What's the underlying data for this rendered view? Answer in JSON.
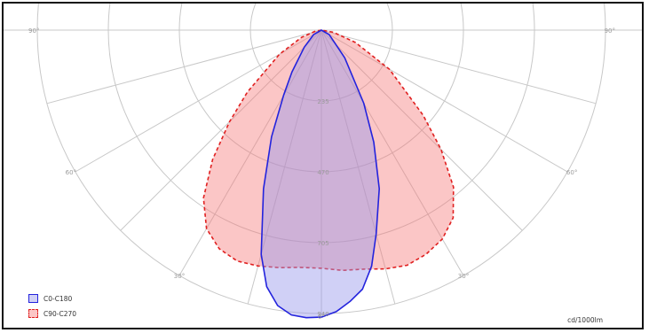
{
  "chart_data": {
    "type": "polar",
    "angle_labels": [
      {
        "label": "90°",
        "angle": -90
      },
      {
        "label": "60°",
        "angle": -60
      },
      {
        "label": "30°",
        "angle": -30
      },
      {
        "label": "0°",
        "angle": 0
      },
      {
        "label": "30°",
        "angle": 30
      },
      {
        "label": "60°",
        "angle": 60
      },
      {
        "label": "90°",
        "angle": 90
      }
    ],
    "radial_ticks": [
      {
        "label": "940",
        "value": 0
      },
      {
        "label": "705",
        "value": 235
      },
      {
        "label": "470",
        "value": 470
      },
      {
        "label": "235",
        "value": 705
      }
    ],
    "series": [
      {
        "name": "C0-C180",
        "color": "#2323dd",
        "fill": "rgba(150,150,235,0.45)",
        "dash": false,
        "points": [
          [
            -90,
            0
          ],
          [
            -60,
            30
          ],
          [
            -45,
            80
          ],
          [
            -35,
            170
          ],
          [
            -30,
            250
          ],
          [
            -25,
            390
          ],
          [
            -20,
            560
          ],
          [
            -15,
            770
          ],
          [
            -12,
            870
          ],
          [
            -9,
            925
          ],
          [
            -6,
            950
          ],
          [
            -3,
            955
          ],
          [
            0,
            952
          ],
          [
            3,
            935
          ],
          [
            6,
            905
          ],
          [
            9,
            870
          ],
          [
            12,
            800
          ],
          [
            15,
            700
          ],
          [
            20,
            560
          ],
          [
            25,
            410
          ],
          [
            30,
            280
          ],
          [
            40,
            120
          ],
          [
            60,
            30
          ],
          [
            90,
            0
          ]
        ]
      },
      {
        "name": "C90-C270",
        "color": "#e02020",
        "fill": "rgba(245,120,120,0.42)",
        "dash": true,
        "points": [
          [
            -90,
            0
          ],
          [
            -80,
            20
          ],
          [
            -70,
            70
          ],
          [
            -60,
            160
          ],
          [
            -50,
            320
          ],
          [
            -45,
            430
          ],
          [
            -40,
            560
          ],
          [
            -35,
            680
          ],
          [
            -30,
            760
          ],
          [
            -25,
            800
          ],
          [
            -20,
            815
          ],
          [
            -15,
            810
          ],
          [
            -10,
            800
          ],
          [
            -5,
            790
          ],
          [
            0,
            790
          ],
          [
            5,
            800
          ],
          [
            10,
            805
          ],
          [
            15,
            820
          ],
          [
            20,
            830
          ],
          [
            25,
            820
          ],
          [
            30,
            800
          ],
          [
            35,
            760
          ],
          [
            40,
            680
          ],
          [
            45,
            560
          ],
          [
            50,
            440
          ],
          [
            60,
            260
          ],
          [
            70,
            120
          ],
          [
            80,
            40
          ],
          [
            90,
            0
          ]
        ]
      }
    ],
    "units": "cd/1000lm"
  },
  "legend": [
    {
      "label": "C0-C180",
      "color": "#2323dd",
      "fill": "rgba(150,150,235,0.45)",
      "dash": false
    },
    {
      "label": "C90-C270",
      "color": "#e02020",
      "fill": "rgba(245,120,120,0.42)",
      "dash": true
    }
  ]
}
